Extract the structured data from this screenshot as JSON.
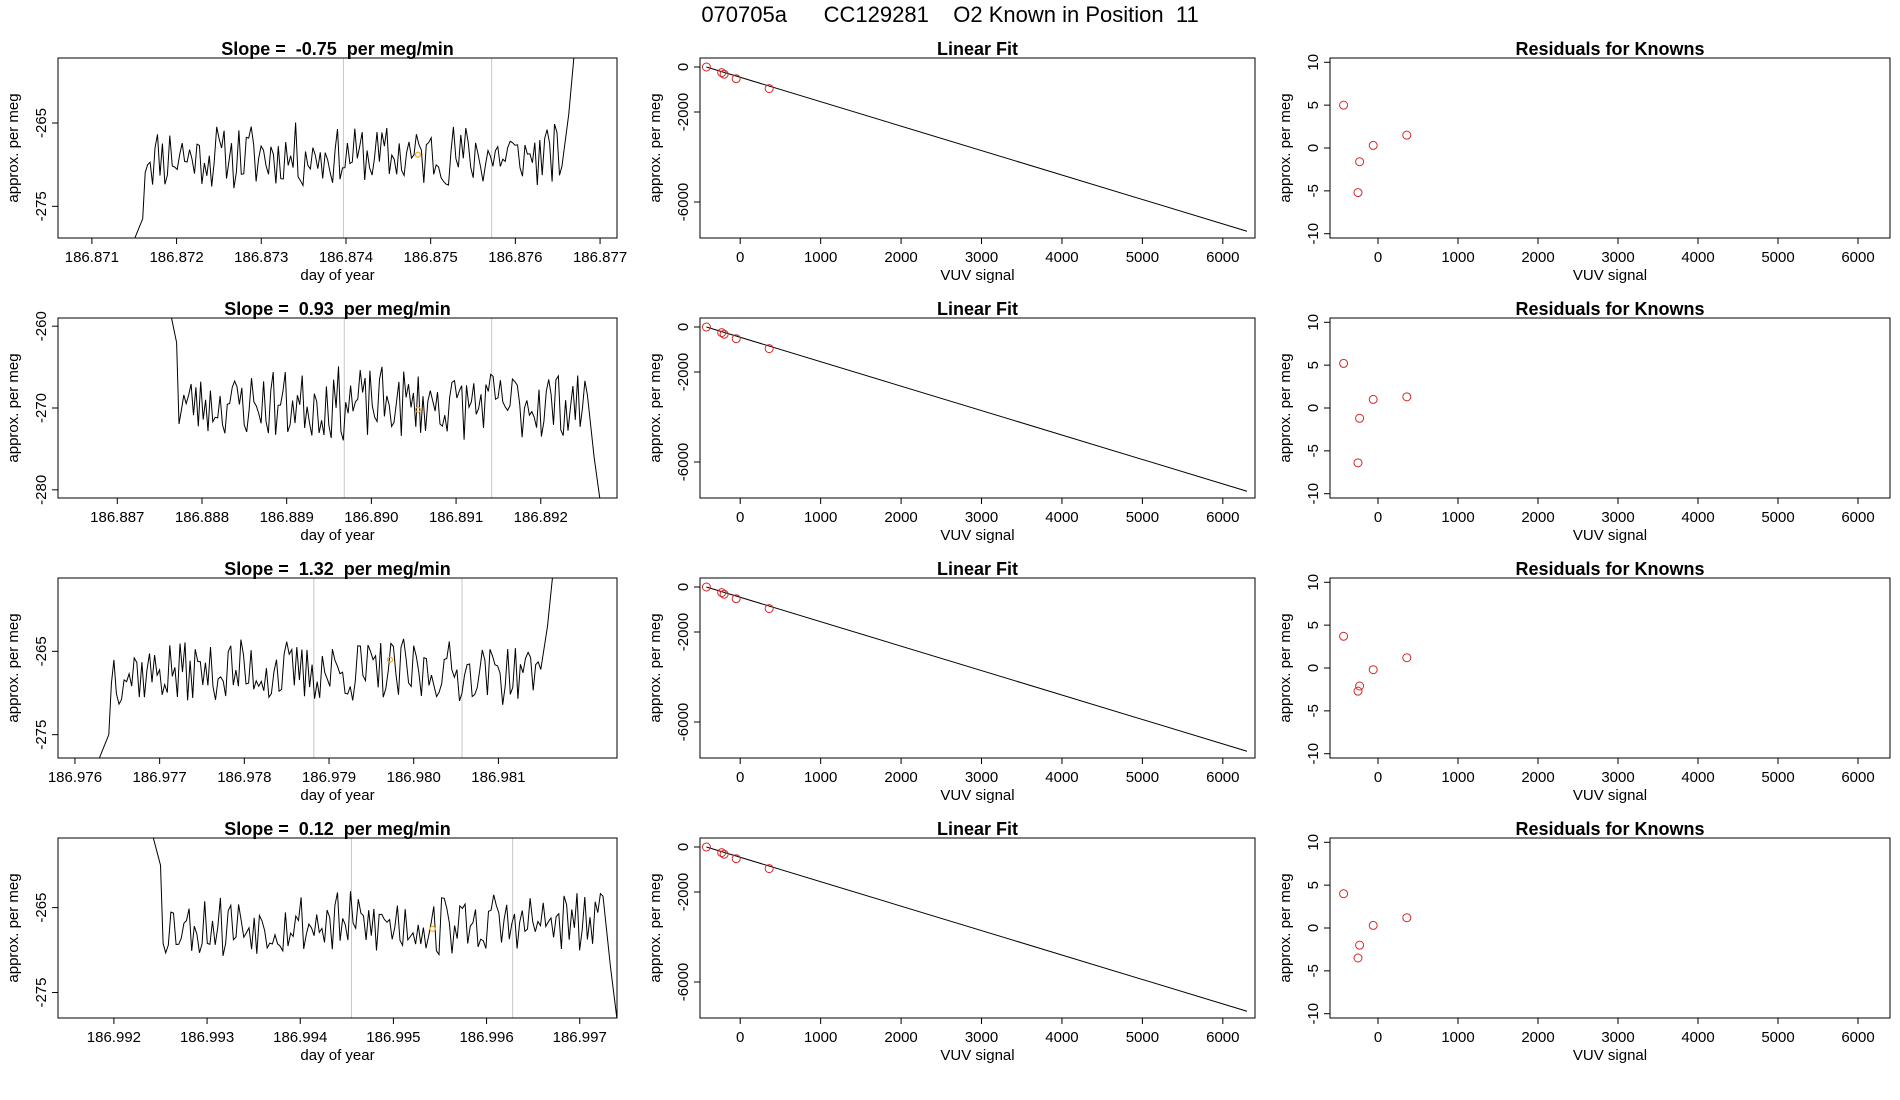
{
  "page": {
    "title": "070705a      CC129281    O2 Known in Position  11"
  },
  "colors": {
    "trace": "#000000",
    "marker_orange": "#f5a623",
    "residual_red": "#d62728",
    "vline": "#c8c8c8",
    "fit_point": "#d62728"
  },
  "chart_data": [
    {
      "type": "line",
      "panel": "time-series",
      "row": 1,
      "title": "Slope =  -0.75  per meg/min",
      "xlabel": "day of year",
      "ylabel": "approx. per meg",
      "xlim": [
        186.8706,
        186.8772
      ],
      "ylim": [
        -278.8,
        -257.2
      ],
      "xticks": [
        "186.871",
        "186.872",
        "186.873",
        "186.874",
        "186.875",
        "186.876",
        "186.877"
      ],
      "xtick_values": [
        186.871,
        186.872,
        186.873,
        186.874,
        186.875,
        186.876,
        186.877
      ],
      "yticks": [
        "-265",
        "-275"
      ],
      "ytick_values": [
        -265,
        -275
      ],
      "vlines": [
        186.87397,
        186.87572
      ],
      "marker": {
        "x": 186.87485,
        "y": -268.8
      },
      "seed": 11,
      "start": 186.8716,
      "end": 186.87655,
      "mean": -269.0,
      "amp": 3.5,
      "pre": [
        -279.5,
        -276.5
      ],
      "post": [
        -264,
        -255
      ]
    },
    {
      "type": "line",
      "panel": "time-series",
      "row": 2,
      "title": "Slope =  0.93  per meg/min",
      "xlabel": "day of year",
      "ylabel": "approx. per meg",
      "xlim": [
        186.8863,
        186.8929
      ],
      "ylim": [
        -281.0,
        -259.0
      ],
      "xticks": [
        "186.887",
        "186.888",
        "186.889",
        "186.890",
        "186.891",
        "186.892"
      ],
      "xtick_values": [
        186.887,
        186.888,
        186.889,
        186.89,
        186.891,
        186.892
      ],
      "yticks": [
        "-260",
        "-270",
        "-280"
      ],
      "ytick_values": [
        -260,
        -270,
        -280
      ],
      "vlines": [
        186.88968,
        186.89142
      ],
      "marker": {
        "x": 186.89055,
        "y": -270.2
      },
      "seed": 23,
      "start": 186.8877,
      "end": 186.89255,
      "mean": -269.5,
      "amp": 4.0,
      "pre": [
        -256,
        -262
      ],
      "post": [
        -276,
        -282
      ]
    },
    {
      "type": "line",
      "panel": "time-series",
      "row": 3,
      "title": "Slope =  1.32  per meg/min",
      "xlabel": "day of year",
      "ylabel": "approx. per meg",
      "xlim": [
        186.9758,
        186.9824
      ],
      "ylim": [
        -277.8,
        -256.2
      ],
      "xticks": [
        "186.976",
        "186.977",
        "186.978",
        "186.979",
        "186.980",
        "186.981"
      ],
      "xtick_values": [
        186.976,
        186.977,
        186.978,
        186.979,
        186.98,
        186.981
      ],
      "yticks": [
        "-265",
        "-275"
      ],
      "ytick_values": [
        -265,
        -275
      ],
      "vlines": [
        186.97882,
        186.98057
      ],
      "marker": {
        "x": 186.97972,
        "y": -266.0
      },
      "seed": 37,
      "start": 186.9764,
      "end": 186.9815,
      "mean": -267.5,
      "amp": 3.5,
      "pre": [
        -278,
        -275
      ],
      "post": [
        -262,
        -254
      ]
    },
    {
      "type": "line",
      "panel": "time-series",
      "row": 4,
      "title": "Slope =  0.12  per meg/min",
      "xlabel": "day of year",
      "ylabel": "approx. per meg",
      "xlim": [
        186.9914,
        186.9974
      ],
      "ylim": [
        -278.0,
        -256.8
      ],
      "xticks": [
        "186.992",
        "186.993",
        "186.994",
        "186.995",
        "186.996",
        "186.997"
      ],
      "xtick_values": [
        186.992,
        186.993,
        186.994,
        186.995,
        186.996,
        186.997
      ],
      "yticks": [
        "-265",
        "-275"
      ],
      "ytick_values": [
        -265,
        -275
      ],
      "vlines": [
        186.99455,
        186.99628
      ],
      "marker": {
        "x": 186.99542,
        "y": -267.5
      },
      "seed": 53,
      "start": 186.9925,
      "end": 186.99725,
      "mean": -267.0,
      "amp": 3.5,
      "pre": [
        -255,
        -260
      ],
      "post": [
        -272,
        -279
      ]
    },
    {
      "type": "scatter",
      "panel": "linear-fit",
      "row": 1,
      "title": "Linear Fit",
      "xlabel": "VUV signal",
      "ylabel": "approx. per meg",
      "xlim": [
        -500,
        6400
      ],
      "ylim": [
        -7600,
        400
      ],
      "xticks": [
        "0",
        "1000",
        "2000",
        "3000",
        "4000",
        "5000",
        "6000"
      ],
      "xtick_values": [
        0,
        1000,
        2000,
        3000,
        4000,
        5000,
        6000
      ],
      "yticks": [
        "0",
        "-2000",
        "-6000"
      ],
      "ytick_values": [
        0,
        -2000,
        -6000
      ],
      "points": [
        {
          "x": -420,
          "y": 0
        },
        {
          "x": -230,
          "y": -250
        },
        {
          "x": -200,
          "y": -320
        },
        {
          "x": -50,
          "y": -520
        },
        {
          "x": 360,
          "y": -960
        }
      ],
      "fit_line": {
        "x1": -420,
        "y1": 0,
        "x2": 6300,
        "y2": -7300
      }
    },
    {
      "type": "scatter",
      "panel": "linear-fit",
      "row": 2,
      "title": "Linear Fit",
      "xlabel": "VUV signal",
      "ylabel": "approx. per meg",
      "xlim": [
        -500,
        6400
      ],
      "ylim": [
        -7600,
        400
      ],
      "xticks": [
        "0",
        "1000",
        "2000",
        "3000",
        "4000",
        "5000",
        "6000"
      ],
      "xtick_values": [
        0,
        1000,
        2000,
        3000,
        4000,
        5000,
        6000
      ],
      "yticks": [
        "0",
        "-2000",
        "-6000"
      ],
      "ytick_values": [
        0,
        -2000,
        -6000
      ],
      "points": [
        {
          "x": -420,
          "y": 0
        },
        {
          "x": -230,
          "y": -250
        },
        {
          "x": -200,
          "y": -320
        },
        {
          "x": -50,
          "y": -520
        },
        {
          "x": 360,
          "y": -960
        }
      ],
      "fit_line": {
        "x1": -420,
        "y1": 0,
        "x2": 6300,
        "y2": -7300
      }
    },
    {
      "type": "scatter",
      "panel": "linear-fit",
      "row": 3,
      "title": "Linear Fit",
      "xlabel": "VUV signal",
      "ylabel": "approx. per meg",
      "xlim": [
        -500,
        6400
      ],
      "ylim": [
        -7600,
        400
      ],
      "xticks": [
        "0",
        "1000",
        "2000",
        "3000",
        "4000",
        "5000",
        "6000"
      ],
      "xtick_values": [
        0,
        1000,
        2000,
        3000,
        4000,
        5000,
        6000
      ],
      "yticks": [
        "0",
        "-2000",
        "-6000"
      ],
      "ytick_values": [
        0,
        -2000,
        -6000
      ],
      "points": [
        {
          "x": -420,
          "y": 0
        },
        {
          "x": -230,
          "y": -250
        },
        {
          "x": -200,
          "y": -320
        },
        {
          "x": -50,
          "y": -520
        },
        {
          "x": 360,
          "y": -960
        }
      ],
      "fit_line": {
        "x1": -420,
        "y1": 0,
        "x2": 6300,
        "y2": -7300
      }
    },
    {
      "type": "scatter",
      "panel": "linear-fit",
      "row": 4,
      "title": "Linear Fit",
      "xlabel": "VUV signal",
      "ylabel": "approx. per meg",
      "xlim": [
        -500,
        6400
      ],
      "ylim": [
        -7600,
        400
      ],
      "xticks": [
        "0",
        "1000",
        "2000",
        "3000",
        "4000",
        "5000",
        "6000"
      ],
      "xtick_values": [
        0,
        1000,
        2000,
        3000,
        4000,
        5000,
        6000
      ],
      "yticks": [
        "0",
        "-2000",
        "-6000"
      ],
      "ytick_values": [
        0,
        -2000,
        -6000
      ],
      "points": [
        {
          "x": -420,
          "y": 0
        },
        {
          "x": -230,
          "y": -250
        },
        {
          "x": -200,
          "y": -320
        },
        {
          "x": -50,
          "y": -520
        },
        {
          "x": 360,
          "y": -960
        }
      ],
      "fit_line": {
        "x1": -420,
        "y1": 0,
        "x2": 6300,
        "y2": -7300
      }
    },
    {
      "type": "scatter",
      "panel": "residuals",
      "row": 1,
      "title": "Residuals for Knowns",
      "xlabel": "VUV signal",
      "ylabel": "approx. per meg",
      "xlim": [
        -600,
        6400
      ],
      "ylim": [
        -10.5,
        10.5
      ],
      "xticks": [
        "0",
        "1000",
        "2000",
        "3000",
        "4000",
        "5000",
        "6000"
      ],
      "xtick_values": [
        0,
        1000,
        2000,
        3000,
        4000,
        5000,
        6000
      ],
      "yticks": [
        "10",
        "5",
        "0",
        "-5",
        "-10"
      ],
      "ytick_values": [
        10,
        5,
        0,
        -5,
        -10
      ],
      "points": [
        {
          "x": -430,
          "y": 5.0
        },
        {
          "x": -230,
          "y": -1.6
        },
        {
          "x": -250,
          "y": -5.2
        },
        {
          "x": -60,
          "y": 0.3
        },
        {
          "x": 360,
          "y": 1.5
        }
      ]
    },
    {
      "type": "scatter",
      "panel": "residuals",
      "row": 2,
      "title": "Residuals for Knowns",
      "xlabel": "VUV signal",
      "ylabel": "approx. per meg",
      "xlim": [
        -600,
        6400
      ],
      "ylim": [
        -10.5,
        10.5
      ],
      "xticks": [
        "0",
        "1000",
        "2000",
        "3000",
        "4000",
        "5000",
        "6000"
      ],
      "xtick_values": [
        0,
        1000,
        2000,
        3000,
        4000,
        5000,
        6000
      ],
      "yticks": [
        "10",
        "5",
        "0",
        "-5",
        "-10"
      ],
      "ytick_values": [
        10,
        5,
        0,
        -5,
        -10
      ],
      "points": [
        {
          "x": -430,
          "y": 5.2
        },
        {
          "x": -230,
          "y": -1.2
        },
        {
          "x": -250,
          "y": -6.4
        },
        {
          "x": -60,
          "y": 1.0
        },
        {
          "x": 360,
          "y": 1.3
        }
      ]
    },
    {
      "type": "scatter",
      "panel": "residuals",
      "row": 3,
      "title": "Residuals for Knowns",
      "xlabel": "VUV signal",
      "ylabel": "approx. per meg",
      "xlim": [
        -600,
        6400
      ],
      "ylim": [
        -10.5,
        10.5
      ],
      "xticks": [
        "0",
        "1000",
        "2000",
        "3000",
        "4000",
        "5000",
        "6000"
      ],
      "xtick_values": [
        0,
        1000,
        2000,
        3000,
        4000,
        5000,
        6000
      ],
      "yticks": [
        "10",
        "5",
        "0",
        "-5",
        "-10"
      ],
      "ytick_values": [
        10,
        5,
        0,
        -5,
        -10
      ],
      "points": [
        {
          "x": -430,
          "y": 3.7
        },
        {
          "x": -230,
          "y": -2.1
        },
        {
          "x": -250,
          "y": -2.7
        },
        {
          "x": -60,
          "y": -0.2
        },
        {
          "x": 360,
          "y": 1.2
        }
      ]
    },
    {
      "type": "scatter",
      "panel": "residuals",
      "row": 4,
      "title": "Residuals for Knowns",
      "xlabel": "VUV signal",
      "ylabel": "approx. per meg",
      "xlim": [
        -600,
        6400
      ],
      "ylim": [
        -10.5,
        10.5
      ],
      "xticks": [
        "0",
        "1000",
        "2000",
        "3000",
        "4000",
        "5000",
        "6000"
      ],
      "xtick_values": [
        0,
        1000,
        2000,
        3000,
        4000,
        5000,
        6000
      ],
      "yticks": [
        "10",
        "5",
        "0",
        "-5",
        "-10"
      ],
      "ytick_values": [
        10,
        5,
        0,
        -5,
        -10
      ],
      "points": [
        {
          "x": -430,
          "y": 4.0
        },
        {
          "x": -230,
          "y": -2.0
        },
        {
          "x": -250,
          "y": -3.5
        },
        {
          "x": -60,
          "y": 0.3
        },
        {
          "x": 360,
          "y": 1.2
        }
      ]
    }
  ]
}
